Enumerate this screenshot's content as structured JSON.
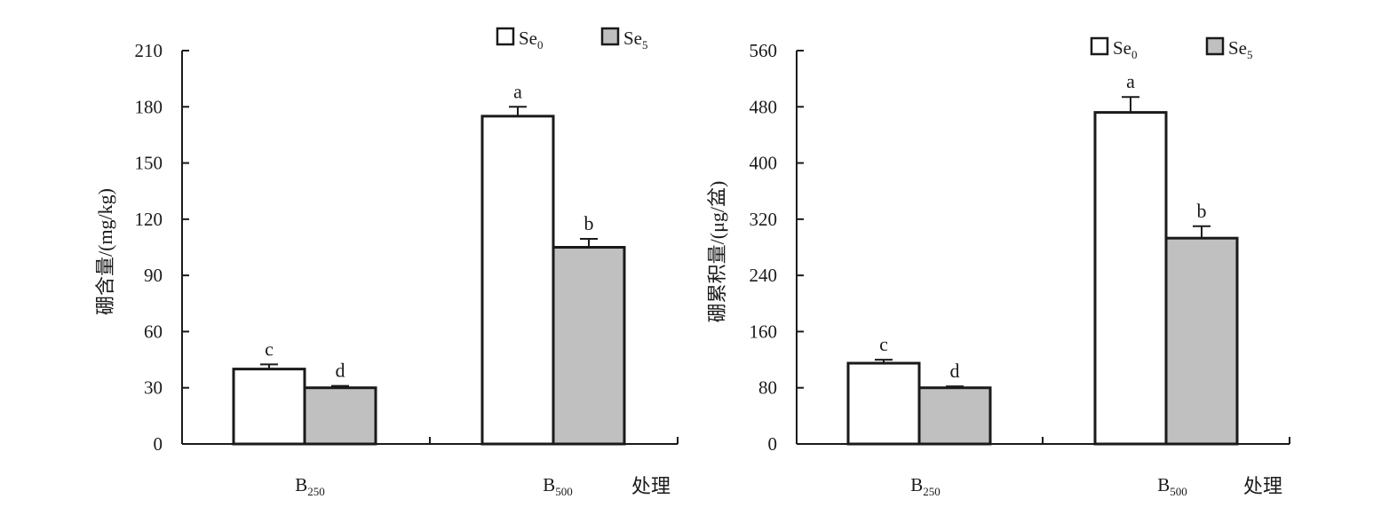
{
  "chart_data": [
    {
      "type": "bar",
      "categories": [
        "B250",
        "B500"
      ],
      "category_labels": [
        {
          "main": "B",
          "sub": "250"
        },
        {
          "main": "B",
          "sub": "500"
        }
      ],
      "xlabel": "处理",
      "ylabel": "硼含量/(mg/kg)",
      "ylim": [
        0,
        210
      ],
      "yticks": [
        0,
        30,
        60,
        90,
        120,
        150,
        180,
        210
      ],
      "series": [
        {
          "name": "Se0",
          "legend": {
            "main": "Se",
            "sub": "0"
          },
          "color": "#ffffff",
          "values": [
            40,
            175
          ],
          "errors": [
            2.5,
            5
          ],
          "letters": [
            "c",
            "a"
          ]
        },
        {
          "name": "Se5",
          "legend": {
            "main": "Se",
            "sub": "5"
          },
          "color": "#c0c0c0",
          "values": [
            30,
            105
          ],
          "errors": [
            1,
            4.5
          ],
          "letters": [
            "d",
            "b"
          ]
        }
      ],
      "legend_position": "top-right",
      "grid": false
    },
    {
      "type": "bar",
      "categories": [
        "B250",
        "B500"
      ],
      "category_labels": [
        {
          "main": "B",
          "sub": "250"
        },
        {
          "main": "B",
          "sub": "500"
        }
      ],
      "xlabel": "处理",
      "ylabel": "硼累积量/(μg/盆)",
      "ylim": [
        0,
        560
      ],
      "yticks": [
        0,
        80,
        160,
        240,
        320,
        400,
        480,
        560
      ],
      "series": [
        {
          "name": "Se0",
          "legend": {
            "main": "Se",
            "sub": "0"
          },
          "color": "#ffffff",
          "values": [
            115,
            472
          ],
          "errors": [
            5,
            22
          ],
          "letters": [
            "c",
            "a"
          ]
        },
        {
          "name": "Se5",
          "legend": {
            "main": "Se",
            "sub": "5"
          },
          "color": "#c0c0c0",
          "values": [
            80,
            293
          ],
          "errors": [
            2,
            17
          ],
          "letters": [
            "d",
            "b"
          ]
        }
      ],
      "legend_position": "top-right",
      "grid": false
    }
  ]
}
